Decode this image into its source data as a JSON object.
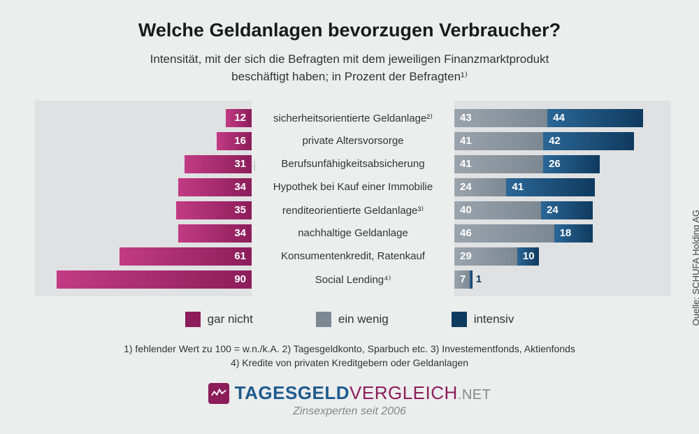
{
  "title": "Welche Geldanlagen bevorzugen Verbraucher?",
  "subtitle_l1": "Intensität, mit der sich die Befragten mit dem jeweiligen Finanzmarktprodukt",
  "subtitle_l2": "beschäftigt haben; in Prozent der Befragten¹⁾",
  "chart": {
    "type": "diverging-stacked-bar",
    "left_scale_max": 100,
    "right_scale_max": 100,
    "rows": [
      {
        "label": "sicherheitsorientierte Geldanlage²⁾",
        "garNicht": 12,
        "einWenig": 43,
        "intensiv": 44
      },
      {
        "label": "private Altersvorsorge",
        "garNicht": 16,
        "einWenig": 41,
        "intensiv": 42
      },
      {
        "label": "Berufsunfähigkeitsabsicherung",
        "garNicht": 31,
        "einWenig": 41,
        "intensiv": 26
      },
      {
        "label": "Hypothek bei Kauf einer Immobilie",
        "garNicht": 34,
        "einWenig": 24,
        "intensiv": 41
      },
      {
        "label": "renditeorientierte Geldanlage³⁾",
        "garNicht": 35,
        "einWenig": 40,
        "intensiv": 24
      },
      {
        "label": "nachhaltige Geldanlage",
        "garNicht": 34,
        "einWenig": 46,
        "intensiv": 18
      },
      {
        "label": "Konsumentenkredit, Ratenkauf",
        "garNicht": 61,
        "einWenig": 29,
        "intensiv": 10
      },
      {
        "label": "Social Lending⁴⁾",
        "garNicht": 90,
        "einWenig": 7,
        "intensiv": 1
      }
    ],
    "colors": {
      "garNicht_start": "#c23b84",
      "garNicht_end": "#8c1d5a",
      "einWenig_start": "#9aa4ad",
      "einWenig_end": "#7c8892",
      "intensiv_start": "#2b6796",
      "intensiv_end": "#0f3a5f",
      "panel_bg": "#e0e1e2",
      "page_bg": "#eceded"
    }
  },
  "legend": {
    "garNicht": "gar nicht",
    "einWenig": "ein wenig",
    "intensiv": "intensiv"
  },
  "footnote_l1": "1) fehlender Wert zu 100 = w.n./k.A. 2) Tagesgeldkonto, Sparbuch etc. 3) Investementfonds, Aktienfonds",
  "footnote_l2": "4) Kredite von privaten Kreditgebern oder Geldanlagen",
  "source": "Quelle: SCHUFA Holding AG",
  "brand": {
    "part1": "TAGESGELD",
    "part2": "VERGLEICH",
    "tld": ".NET",
    "sub": "Zinsexperten seit 2006"
  },
  "watermark": "TAGESGELDVERGLEICH"
}
